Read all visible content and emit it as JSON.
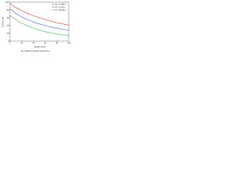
{
  "chart_data": {
    "type": "line",
    "xlabel": "Radius [cm]",
    "ylabel": "Current (A)",
    "caption": "Bi = 80.2% Fe2O3, 40.9% Co",
    "x": [
      0,
      10,
      20,
      30,
      40,
      50,
      60,
      70,
      80,
      90,
      100
    ],
    "series": [
      {
        "name": "R = 0.025 s",
        "color": "#e8202a",
        "values": [
          96,
          86,
          78,
          71,
          65,
          60,
          55,
          51,
          47,
          44,
          41
        ]
      },
      {
        "name": "R = 1.00 s",
        "color": "#2a4fd8",
        "values": [
          82,
          71,
          62,
          55,
          49,
          44,
          40,
          36,
          33,
          30,
          28
        ]
      },
      {
        "name": "R = 50.00 s",
        "color": "#2fb34a",
        "values": [
          66,
          55,
          46,
          39,
          33,
          28,
          24,
          21,
          18,
          16,
          14
        ]
      }
    ],
    "xlim": [
      0,
      100
    ],
    "ylim": [
      0,
      100
    ],
    "xticks": [
      0,
      20,
      40,
      60,
      80,
      100
    ],
    "yticks": [
      0,
      20,
      40,
      60,
      80,
      100
    ],
    "legend": "upper right"
  }
}
